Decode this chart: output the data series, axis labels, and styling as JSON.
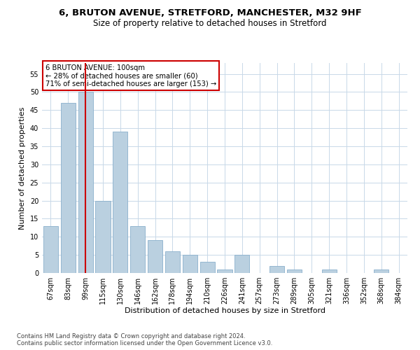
{
  "title1": "6, BRUTON AVENUE, STRETFORD, MANCHESTER, M32 9HF",
  "title2": "Size of property relative to detached houses in Stretford",
  "xlabel": "Distribution of detached houses by size in Stretford",
  "ylabel": "Number of detached properties",
  "categories": [
    "67sqm",
    "83sqm",
    "99sqm",
    "115sqm",
    "130sqm",
    "146sqm",
    "162sqm",
    "178sqm",
    "194sqm",
    "210sqm",
    "226sqm",
    "241sqm",
    "257sqm",
    "273sqm",
    "289sqm",
    "305sqm",
    "321sqm",
    "336sqm",
    "352sqm",
    "368sqm",
    "384sqm"
  ],
  "values": [
    13,
    47,
    50,
    20,
    39,
    13,
    9,
    6,
    5,
    3,
    1,
    5,
    0,
    2,
    1,
    0,
    1,
    0,
    0,
    1,
    0
  ],
  "bar_color": "#bad0e0",
  "bar_edge_color": "#8ab0cc",
  "vline_color": "#cc0000",
  "annotation_title": "6 BRUTON AVENUE: 100sqm",
  "annotation_line2": "← 28% of detached houses are smaller (60)",
  "annotation_line3": "71% of semi-detached houses are larger (153) →",
  "annotation_box_color": "#ffffff",
  "annotation_box_edgecolor": "#cc0000",
  "ylim": [
    0,
    58
  ],
  "yticks": [
    0,
    5,
    10,
    15,
    20,
    25,
    30,
    35,
    40,
    45,
    50,
    55
  ],
  "footer1": "Contains HM Land Registry data © Crown copyright and database right 2024.",
  "footer2": "Contains public sector information licensed under the Open Government Licence v3.0.",
  "bg_color": "#ffffff",
  "grid_color": "#c8d8e8"
}
